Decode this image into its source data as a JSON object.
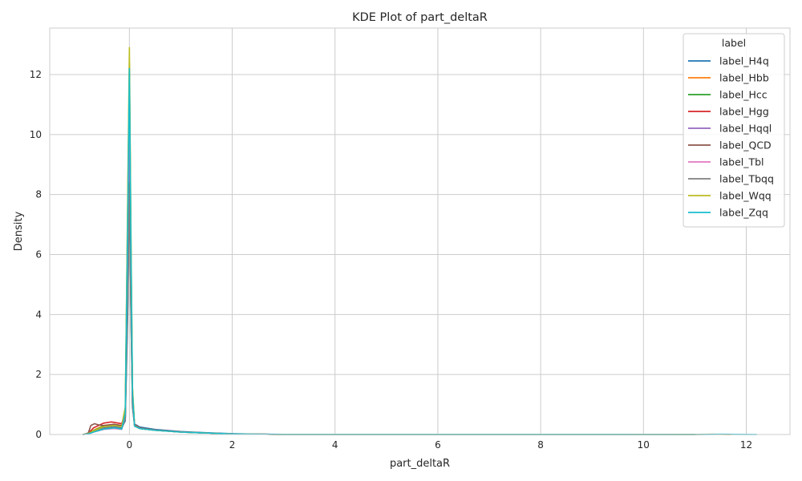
{
  "chart_data": {
    "type": "line",
    "title": "KDE Plot of part_deltaR",
    "xlabel": "part_deltaR",
    "ylabel": "Density",
    "xlim": [
      -1.55,
      12.85
    ],
    "ylim": [
      0,
      13.55
    ],
    "xticks": [
      0,
      2,
      4,
      6,
      8,
      10,
      12
    ],
    "yticks": [
      0,
      2,
      4,
      6,
      8,
      10,
      12
    ],
    "grid": true,
    "legend_title": "label",
    "legend_position": "top-right",
    "series": [
      {
        "name": "label_H4q",
        "color": "#1f77b4",
        "x": [
          -0.9,
          -0.8,
          -0.7,
          -0.5,
          -0.3,
          -0.15,
          -0.08,
          -0.03,
          0.0,
          0.03,
          0.06,
          0.1,
          0.2,
          0.5,
          1.0,
          1.5,
          2.0,
          2.5,
          3.0,
          11.0
        ],
        "y": [
          0,
          0.02,
          0.1,
          0.22,
          0.26,
          0.22,
          0.45,
          4.2,
          8.6,
          4.0,
          0.9,
          0.35,
          0.25,
          0.17,
          0.1,
          0.06,
          0.03,
          0.012,
          0.004,
          0
        ]
      },
      {
        "name": "label_Hbb",
        "color": "#ff7f0e",
        "x": [
          -0.9,
          -0.8,
          -0.7,
          -0.5,
          -0.3,
          -0.15,
          -0.08,
          -0.03,
          0.0,
          0.03,
          0.06,
          0.1,
          0.2,
          0.5,
          1.0,
          1.5,
          2.0,
          2.5,
          3.0,
          11.0,
          11.3,
          11.7
        ],
        "y": [
          0,
          0.03,
          0.14,
          0.3,
          0.34,
          0.3,
          0.8,
          7.0,
          11.3,
          6.0,
          1.4,
          0.3,
          0.2,
          0.14,
          0.08,
          0.05,
          0.02,
          0.01,
          0.003,
          0,
          0.01,
          0
        ]
      },
      {
        "name": "label_Hcc",
        "color": "#2ca02c",
        "x": [
          -0.9,
          -0.8,
          -0.7,
          -0.5,
          -0.3,
          -0.15,
          -0.08,
          -0.03,
          0.0,
          0.03,
          0.06,
          0.1,
          0.2,
          0.5,
          1.0,
          1.5,
          2.0,
          2.5,
          3.0,
          11.0
        ],
        "y": [
          0,
          0.03,
          0.13,
          0.28,
          0.32,
          0.28,
          0.9,
          8.0,
          12.4,
          6.5,
          1.5,
          0.3,
          0.2,
          0.14,
          0.08,
          0.05,
          0.02,
          0.01,
          0.003,
          0
        ]
      },
      {
        "name": "label_Hgg",
        "color": "#d62728",
        "x": [
          -0.9,
          -0.8,
          -0.7,
          -0.5,
          -0.35,
          -0.15,
          -0.08,
          -0.03,
          0.0,
          0.03,
          0.06,
          0.1,
          0.2,
          0.5,
          1.0,
          1.5,
          2.0,
          2.5,
          3.0,
          11.0
        ],
        "y": [
          0,
          0.04,
          0.22,
          0.38,
          0.42,
          0.36,
          0.7,
          6.2,
          10.9,
          5.5,
          1.3,
          0.33,
          0.22,
          0.15,
          0.09,
          0.05,
          0.02,
          0.01,
          0.003,
          0
        ]
      },
      {
        "name": "label_Hqql",
        "color": "#9467bd",
        "x": [
          -0.9,
          -0.8,
          -0.7,
          -0.5,
          -0.3,
          -0.15,
          -0.08,
          -0.03,
          0.0,
          0.03,
          0.06,
          0.1,
          0.2,
          0.5,
          1.0,
          1.5,
          2.0,
          2.5,
          3.0,
          11.0
        ],
        "y": [
          0,
          0.02,
          0.1,
          0.2,
          0.24,
          0.2,
          0.5,
          5.5,
          10.3,
          5.0,
          1.1,
          0.3,
          0.22,
          0.15,
          0.09,
          0.05,
          0.02,
          0.01,
          0.003,
          0
        ]
      },
      {
        "name": "label_QCD",
        "color": "#8c564b",
        "x": [
          -0.9,
          -0.8,
          -0.75,
          -0.68,
          -0.6,
          -0.5,
          -0.3,
          -0.15,
          -0.08,
          -0.03,
          0.0,
          0.03,
          0.06,
          0.1,
          0.2,
          0.5,
          1.0,
          1.5,
          2.0,
          2.5,
          3.0,
          11.0
        ],
        "y": [
          0,
          0.05,
          0.3,
          0.36,
          0.32,
          0.3,
          0.34,
          0.3,
          0.6,
          5.0,
          8.4,
          4.0,
          1.0,
          0.3,
          0.22,
          0.15,
          0.09,
          0.05,
          0.02,
          0.01,
          0.003,
          0
        ]
      },
      {
        "name": "label_Tbl",
        "color": "#e377c2",
        "x": [
          -0.9,
          -0.8,
          -0.7,
          -0.5,
          -0.3,
          -0.15,
          -0.08,
          -0.03,
          0.0,
          0.03,
          0.06,
          0.1,
          0.2,
          0.5,
          1.0,
          1.5,
          2.0,
          2.5,
          3.0,
          11.0
        ],
        "y": [
          0,
          0.02,
          0.08,
          0.17,
          0.2,
          0.17,
          0.6,
          6.5,
          11.8,
          5.8,
          1.3,
          0.28,
          0.2,
          0.14,
          0.08,
          0.05,
          0.02,
          0.01,
          0.003,
          0
        ]
      },
      {
        "name": "label_Tbqq",
        "color": "#7f7f7f",
        "x": [
          -0.9,
          -0.8,
          -0.7,
          -0.5,
          -0.3,
          -0.15,
          -0.08,
          -0.03,
          0.0,
          0.03,
          0.06,
          0.1,
          0.2,
          0.5,
          1.0,
          1.5,
          2.0,
          2.5,
          3.0,
          11.0
        ],
        "y": [
          0,
          0.02,
          0.09,
          0.2,
          0.24,
          0.2,
          0.5,
          4.5,
          8.4,
          4.2,
          1.0,
          0.28,
          0.2,
          0.14,
          0.08,
          0.05,
          0.02,
          0.01,
          0.003,
          0
        ]
      },
      {
        "name": "label_Wqq",
        "color": "#bcbd22",
        "x": [
          -0.9,
          -0.8,
          -0.7,
          -0.5,
          -0.3,
          -0.15,
          -0.08,
          -0.03,
          0.0,
          0.03,
          0.06,
          0.1,
          0.2,
          0.5,
          1.0,
          1.5,
          2.0,
          2.5,
          3.0,
          11.0
        ],
        "y": [
          0,
          0.03,
          0.12,
          0.26,
          0.3,
          0.26,
          0.9,
          8.5,
          12.9,
          6.8,
          1.6,
          0.3,
          0.2,
          0.14,
          0.08,
          0.05,
          0.02,
          0.01,
          0.003,
          0
        ]
      },
      {
        "name": "label_Zqq",
        "color": "#17becf",
        "x": [
          -0.9,
          -0.8,
          -0.7,
          -0.5,
          -0.3,
          -0.15,
          -0.08,
          -0.03,
          0.0,
          0.03,
          0.06,
          0.1,
          0.2,
          0.5,
          1.0,
          1.5,
          2.0,
          2.5,
          3.0,
          11.0,
          11.5,
          12.2
        ],
        "y": [
          0,
          0.02,
          0.08,
          0.18,
          0.22,
          0.18,
          0.7,
          7.5,
          12.2,
          6.2,
          1.4,
          0.28,
          0.2,
          0.14,
          0.08,
          0.05,
          0.02,
          0.01,
          0.003,
          0,
          0.008,
          0
        ]
      }
    ]
  }
}
